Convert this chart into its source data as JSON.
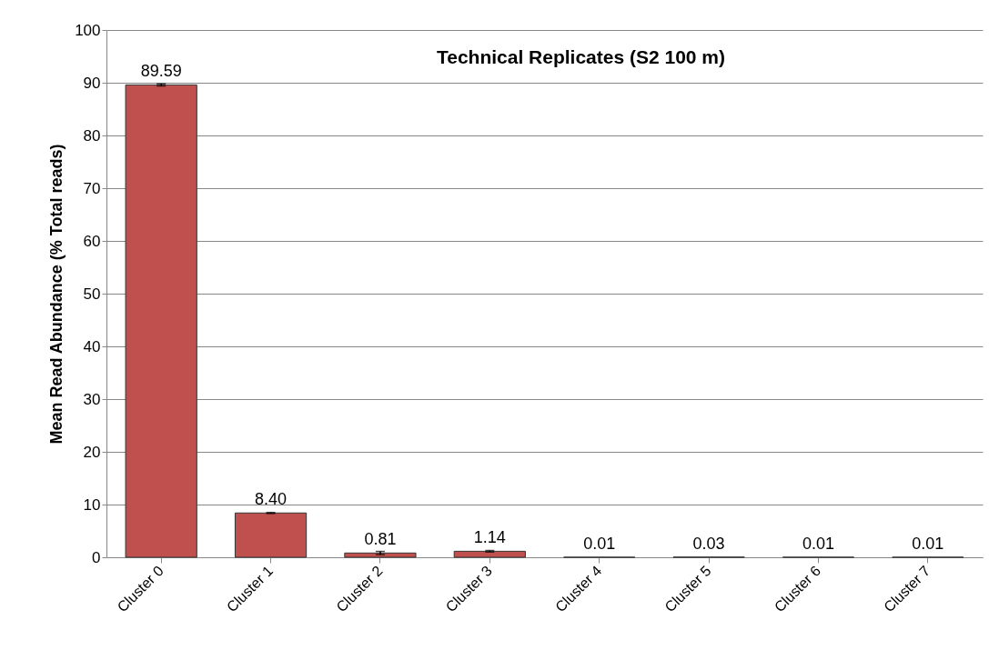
{
  "chart_data": {
    "type": "bar",
    "title": "Technical Replicates (S2 100 m)",
    "ylabel": "Mean Read Abundance (% Total reads)",
    "categories": [
      "Cluster 0",
      "Cluster 1",
      "Cluster 2",
      "Cluster 3",
      "Cluster 4",
      "Cluster 5",
      "Cluster 6",
      "Cluster 7"
    ],
    "values": [
      89.59,
      8.4,
      0.81,
      1.14,
      0.01,
      0.03,
      0.01,
      0.01
    ],
    "value_labels": [
      "89.59",
      "8.40",
      "0.81",
      "1.14",
      "0.01",
      "0.03",
      "0.01",
      "0.01"
    ],
    "errors": [
      0.2,
      0.1,
      0.3,
      0.15,
      null,
      null,
      null,
      null
    ],
    "color": "#c0504d",
    "ylim": [
      0,
      100
    ],
    "yticks": [
      0,
      10,
      20,
      30,
      40,
      50,
      60,
      70,
      80,
      90,
      100
    ],
    "grid": "y"
  }
}
